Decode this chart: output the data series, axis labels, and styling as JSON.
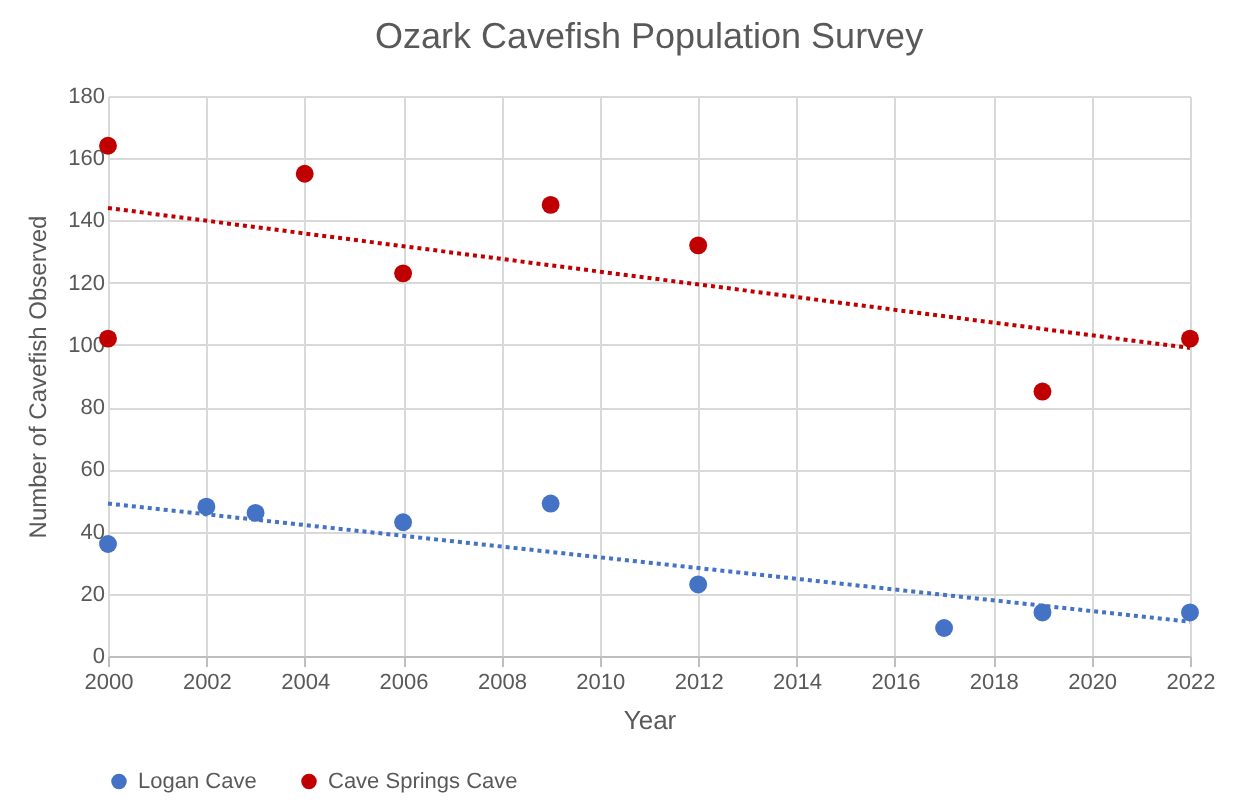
{
  "chart_data": {
    "type": "scatter",
    "title": "Ozark Cavefish Population Survey",
    "xlabel": "Year",
    "ylabel": "Number of Cavefish Observed",
    "xlim": [
      2000,
      2022
    ],
    "xticks": [
      2000,
      2002,
      2004,
      2006,
      2008,
      2010,
      2012,
      2014,
      2016,
      2018,
      2020,
      2022
    ],
    "ylim": [
      0,
      180
    ],
    "yticks": [
      0,
      20,
      40,
      60,
      80,
      100,
      120,
      140,
      160,
      180
    ],
    "grid": true,
    "legend": "bottom",
    "marker": "circle",
    "series": [
      {
        "name": "Logan Cave",
        "color": "#4472c4",
        "x": [
          2000,
          2002,
          2003,
          2006,
          2009,
          2012,
          2017,
          2019,
          2022
        ],
        "values": [
          36,
          48,
          46,
          43,
          49,
          23,
          9,
          14,
          14
        ]
      },
      {
        "name": "Cave Springs Cave",
        "color": "#c00000",
        "x": [
          2000,
          2000,
          2004,
          2006,
          2009,
          2012,
          2019,
          2022
        ],
        "values": [
          164,
          102,
          155,
          123,
          145,
          132,
          85,
          102
        ]
      },
      {
        "type": "line",
        "color": "#4472c4",
        "line_style": "dotted",
        "marker": "none",
        "x": [
          2000,
          2022
        ],
        "values": [
          49,
          11
        ]
      },
      {
        "type": "line",
        "color": "#c00000",
        "line_style": "dotted",
        "marker": "none",
        "x": [
          2000,
          2022
        ],
        "values": [
          144,
          99
        ]
      }
    ]
  }
}
